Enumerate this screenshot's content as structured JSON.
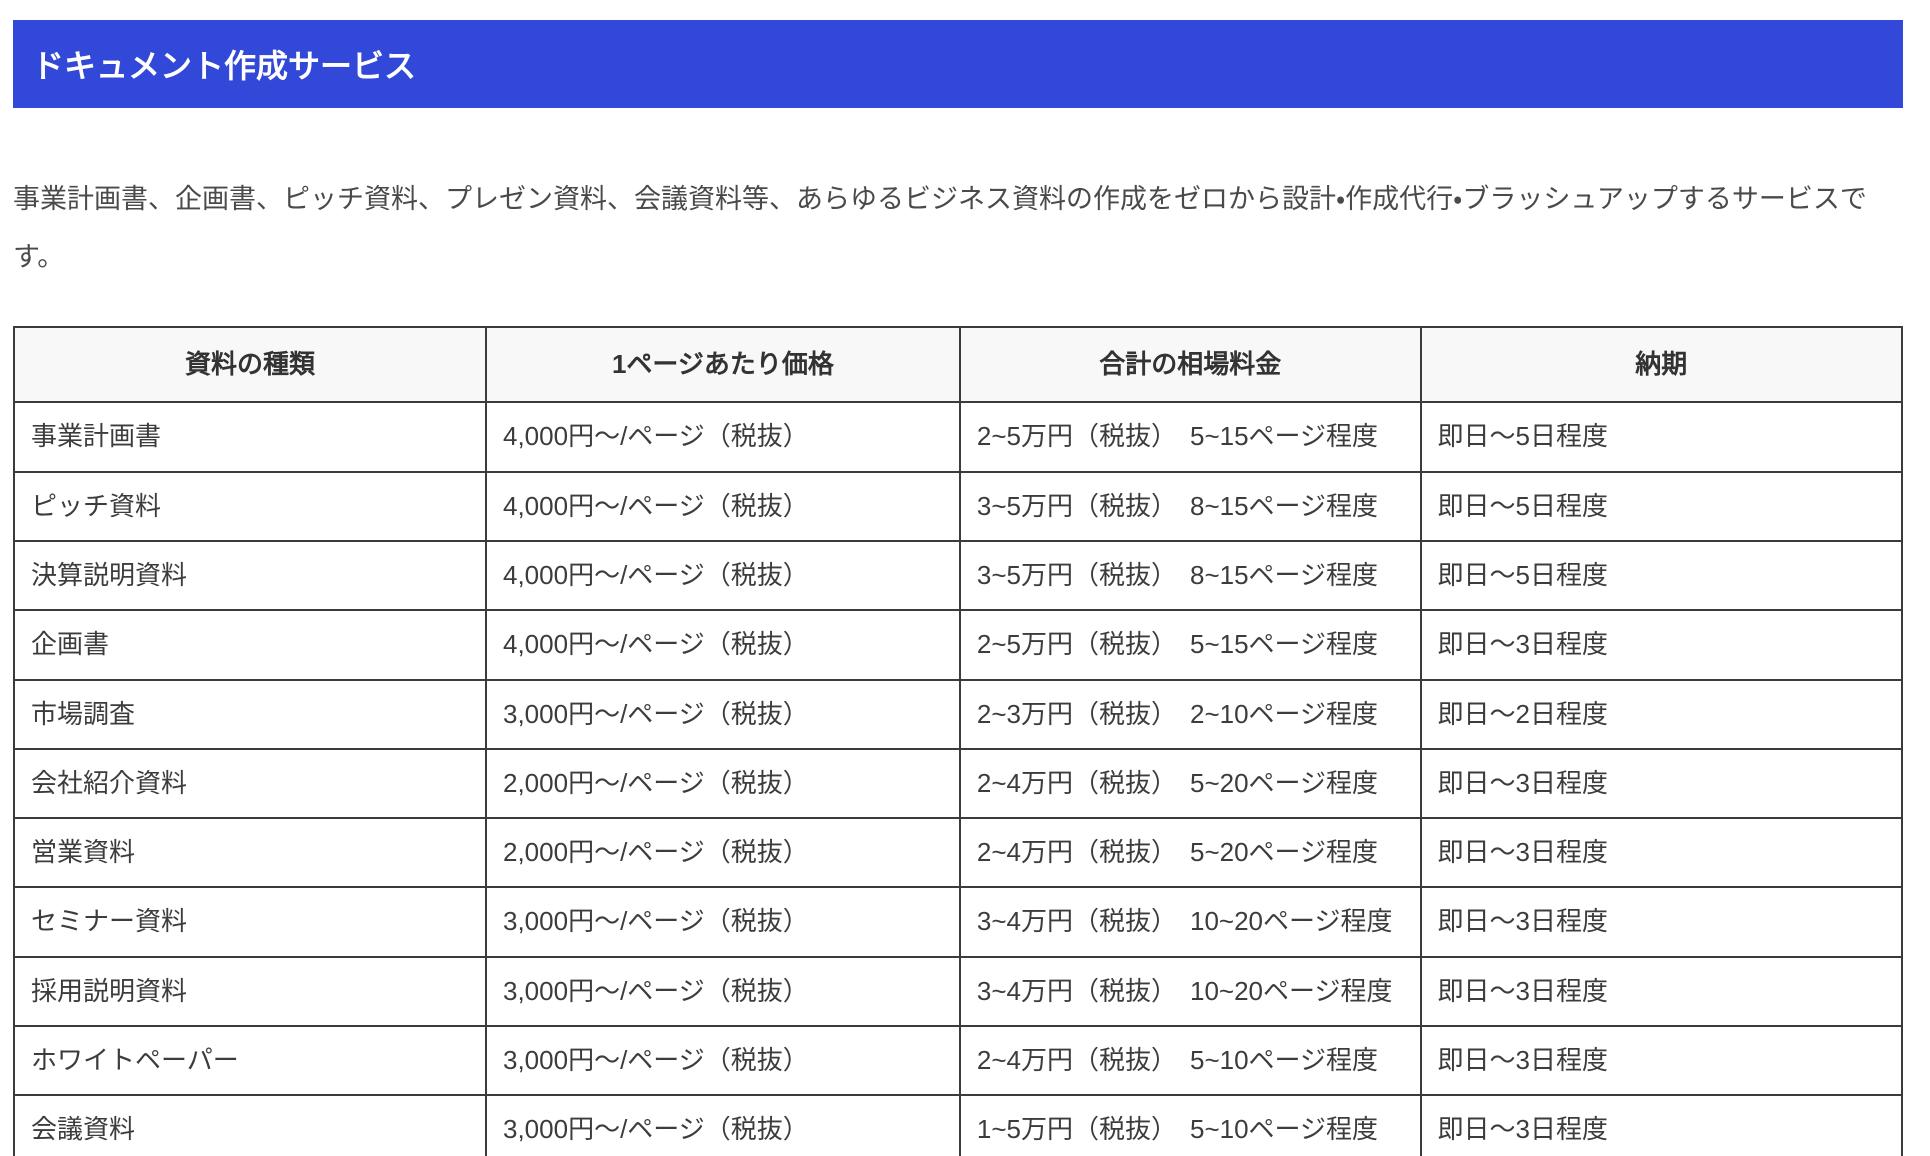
{
  "page": {
    "title": "ドキュメント作成サービス",
    "description": "事業計画書、企画書、ピッチ資料、プレゼン資料、会議資料等、あらゆるビジネス資料の作成をゼロから設計・作成代行・ブラッシュアップするサービスです。"
  },
  "colors": {
    "banner_bg": "#3248d8",
    "banner_text": "#ffffff",
    "table_header_bg": "#f8f8f8",
    "table_border": "#3b3b3b",
    "body_text": "#4a4a4a"
  },
  "table": {
    "columns": [
      "資料の種類",
      "1ページあたり価格",
      "合計の相場料金",
      "納期"
    ],
    "column_keys": [
      "document-type",
      "price-per-page",
      "total-price-range",
      "delivery-time"
    ],
    "rows": [
      [
        "事業計画書",
        "4,000円〜/ページ（税抜）",
        "2~5万円（税抜）　5~15ページ程度",
        "即日〜5日程度"
      ],
      [
        "ピッチ資料",
        "4,000円〜/ページ（税抜）",
        "3~5万円（税抜）　8~15ページ程度",
        "即日〜5日程度"
      ],
      [
        "決算説明資料",
        "4,000円〜/ページ（税抜）",
        "3~5万円（税抜）　8~15ページ程度",
        "即日〜5日程度"
      ],
      [
        "企画書",
        "4,000円〜/ページ（税抜）",
        "2~5万円（税抜）　5~15ページ程度",
        "即日〜3日程度"
      ],
      [
        "市場調査",
        "3,000円〜/ページ（税抜）",
        "2~3万円（税抜）　2~10ページ程度",
        "即日〜2日程度"
      ],
      [
        "会社紹介資料",
        "2,000円〜/ページ（税抜）",
        "2~4万円（税抜）　5~20ページ程度",
        "即日〜3日程度"
      ],
      [
        "営業資料",
        "2,000円〜/ページ（税抜）",
        "2~4万円（税抜）　5~20ページ程度",
        "即日〜3日程度"
      ],
      [
        "セミナー資料",
        "3,000円〜/ページ（税抜）",
        "3~4万円（税抜）　10~20ページ程度",
        "即日〜3日程度"
      ],
      [
        "採用説明資料",
        "3,000円〜/ページ（税抜）",
        "3~4万円（税抜）　10~20ページ程度",
        "即日〜3日程度"
      ],
      [
        "ホワイトペーパー",
        "3,000円〜/ページ（税抜）",
        "2~4万円（税抜）　5~10ページ程度",
        "即日〜3日程度"
      ],
      [
        "会議資料",
        "3,000円〜/ページ（税抜）",
        "1~5万円（税抜）　5~10ページ程度",
        "即日〜3日程度"
      ]
    ]
  }
}
